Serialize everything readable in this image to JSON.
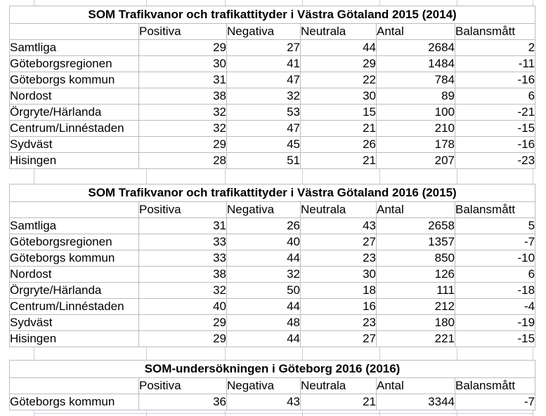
{
  "grid_color": "#b7bdc4",
  "background_grid_color": "#c9ced4",
  "columns": [
    "Positiva",
    "Negativa",
    "Neutrala",
    "Antal",
    "Balansmått"
  ],
  "tables": [
    {
      "title": "SOM Trafikvanor och trafikattityder i Västra Götaland 2015 (2014)",
      "rows": [
        {
          "label": "Samtliga",
          "values": [
            29,
            27,
            44,
            2684,
            2
          ]
        },
        {
          "label": "Göteborgsregionen",
          "values": [
            30,
            41,
            29,
            1484,
            -11
          ]
        },
        {
          "label": "Göteborgs kommun",
          "values": [
            31,
            47,
            22,
            784,
            -16
          ]
        },
        {
          "label": "Nordost",
          "values": [
            38,
            32,
            30,
            89,
            6
          ]
        },
        {
          "label": "Örgryte/Härlanda",
          "values": [
            32,
            53,
            15,
            100,
            -21
          ]
        },
        {
          "label": "Centrum/Linnéstaden",
          "values": [
            32,
            47,
            21,
            210,
            -15
          ]
        },
        {
          "label": "Sydväst",
          "values": [
            29,
            45,
            26,
            178,
            -16
          ]
        },
        {
          "label": "Hisingen",
          "values": [
            28,
            51,
            21,
            207,
            -23
          ]
        }
      ]
    },
    {
      "title": "SOM Trafikvanor och trafikattityder i Västra Götaland 2016 (2015)",
      "rows": [
        {
          "label": "Samtliga",
          "values": [
            31,
            26,
            43,
            2658,
            5
          ]
        },
        {
          "label": "Göteborgsregionen",
          "values": [
            33,
            40,
            27,
            1357,
            -7
          ]
        },
        {
          "label": "Göteborgs kommun",
          "values": [
            33,
            44,
            23,
            850,
            -10
          ]
        },
        {
          "label": "Nordost",
          "values": [
            38,
            32,
            30,
            126,
            6
          ]
        },
        {
          "label": "Örgryte/Härlanda",
          "values": [
            32,
            50,
            18,
            111,
            -18
          ]
        },
        {
          "label": "Centrum/Linnéstaden",
          "values": [
            40,
            44,
            16,
            212,
            -4
          ]
        },
        {
          "label": "Sydväst",
          "values": [
            29,
            48,
            23,
            180,
            -19
          ]
        },
        {
          "label": "Hisingen",
          "values": [
            29,
            44,
            27,
            221,
            -15
          ]
        }
      ]
    },
    {
      "title": "SOM-undersökningen i Göteborg 2016 (2016)",
      "rows": [
        {
          "label": "Göteborgs kommun",
          "values": [
            36,
            43,
            21,
            3344,
            -7
          ]
        }
      ]
    }
  ]
}
